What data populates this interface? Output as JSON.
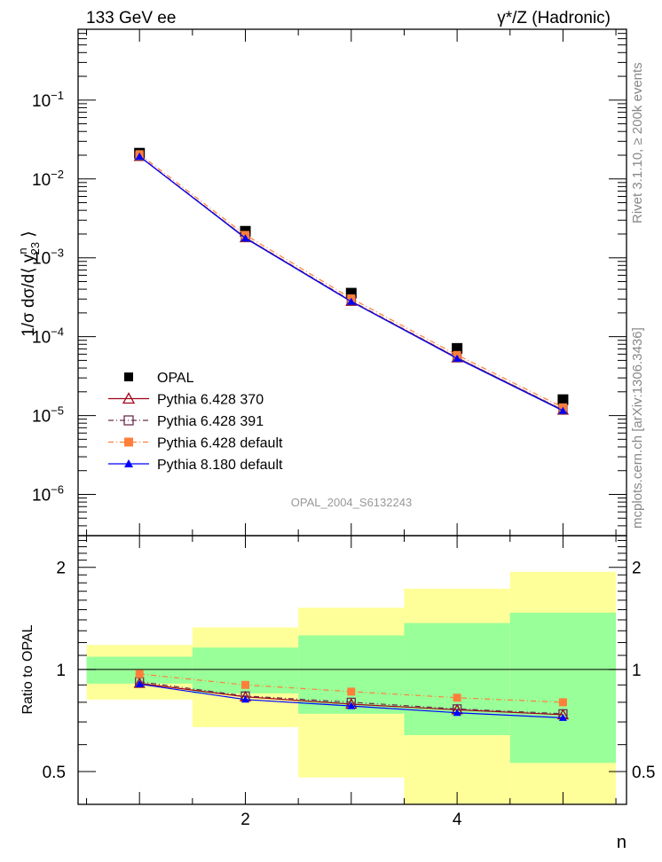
{
  "chart_data": [
    {
      "type": "scatter",
      "title_left": "133 GeV ee",
      "title_right": "γ*/Z (Hadronic)",
      "ylabel": "1/σ dσ/d⟨ y23^n ⟩",
      "ylabel_main": "1/σ dσ/d⟨ y",
      "ylabel_sub": "23",
      "ylabel_sup": "n",
      "ylabel_end": " ⟩",
      "yscale": "log",
      "ylim": [
        3e-07,
        0.79
      ],
      "xlim": [
        0.42,
        5.6
      ],
      "ytick_labels": [
        {
          "base": "10",
          "exp": "−1",
          "value": 0.1
        },
        {
          "base": "10",
          "exp": "−2",
          "value": 0.01
        },
        {
          "base": "10",
          "exp": "−3",
          "value": 0.001
        },
        {
          "base": "10",
          "exp": "−4",
          "value": 0.0001
        },
        {
          "base": "10",
          "exp": "−5",
          "value": 1e-05
        },
        {
          "base": "10",
          "exp": "−6",
          "value": 1e-06
        }
      ],
      "x": [
        1,
        2,
        3,
        4,
        5
      ],
      "series": [
        {
          "name": "OPAL",
          "color": "#000000",
          "marker": "filled-square",
          "values": [
            0.0212,
            0.00217,
            0.000356,
            7.1e-05,
            1.59e-05
          ]
        },
        {
          "name": "Pythia 6.428 370",
          "color": "#a00018",
          "marker": "open-triangle",
          "line": "solid",
          "values": [
            0.0193,
            0.0018,
            0.000281,
            5.4e-05,
            1.17e-05
          ]
        },
        {
          "name": "Pythia 6.428 391",
          "color": "#6a3050",
          "marker": "open-square",
          "line": "dash-dot",
          "values": [
            0.0195,
            0.00181,
            0.000285,
            5.43e-05,
            1.18e-05
          ]
        },
        {
          "name": "Pythia 6.428 default",
          "color": "#ff7f3a",
          "marker": "filled-square",
          "line": "dash-dot",
          "values": [
            0.0206,
            0.00195,
            0.000306,
            5.86e-05,
            1.27e-05
          ]
        },
        {
          "name": "Pythia 8.180 default",
          "color": "#0000ff",
          "marker": "filled-triangle",
          "line": "solid",
          "values": [
            0.0193,
            0.00177,
            0.000278,
            5.29e-05,
            1.15e-05
          ]
        }
      ],
      "legend_position": "bottom-left",
      "analysis_label": "OPAL_2004_S6132243",
      "side_label_top": "Rivet 3.1.10, ≥ 200k events",
      "side_label_bottom": "mcplots.cern.ch [arXiv:1306.3436]"
    },
    {
      "type": "line",
      "ylabel": "Ratio to OPAL",
      "xlabel": "n",
      "yscale": "log",
      "ylim": [
        0.4,
        2.48
      ],
      "xlim": [
        0.42,
        5.6
      ],
      "ytick_labels": [
        "2",
        "1",
        "0.5"
      ],
      "ytick_values": [
        2,
        1,
        0.5
      ],
      "xtick_labels": [
        "2",
        "4"
      ],
      "xtick_values": [
        2,
        4
      ],
      "bins": [
        [
          0.5,
          1.5
        ],
        [
          1.5,
          2.5
        ],
        [
          2.5,
          3.5
        ],
        [
          3.5,
          4.5
        ],
        [
          4.5,
          5.5
        ]
      ],
      "band_stat": {
        "color": "#99ff99",
        "low": [
          0.908,
          0.85,
          0.74,
          0.64,
          0.53
        ],
        "high": [
          1.09,
          1.16,
          1.26,
          1.37,
          1.47
        ]
      },
      "band_total": {
        "color": "#ffff99",
        "low": [
          0.815,
          0.676,
          0.48,
          0.38,
          0.38
        ],
        "high": [
          1.18,
          1.33,
          1.52,
          1.73,
          1.94
        ]
      },
      "x": [
        1,
        2,
        3,
        4,
        5
      ],
      "series": [
        {
          "name": "Pythia 6.428 370",
          "values": [
            0.91,
            0.83,
            0.79,
            0.76,
            0.735
          ]
        },
        {
          "name": "Pythia 6.428 391",
          "values": [
            0.92,
            0.835,
            0.8,
            0.765,
            0.74
          ]
        },
        {
          "name": "Pythia 6.428 default",
          "values": [
            0.97,
            0.9,
            0.86,
            0.825,
            0.8
          ]
        },
        {
          "name": "Pythia 8.180 default",
          "values": [
            0.905,
            0.815,
            0.78,
            0.745,
            0.72
          ]
        }
      ]
    }
  ]
}
